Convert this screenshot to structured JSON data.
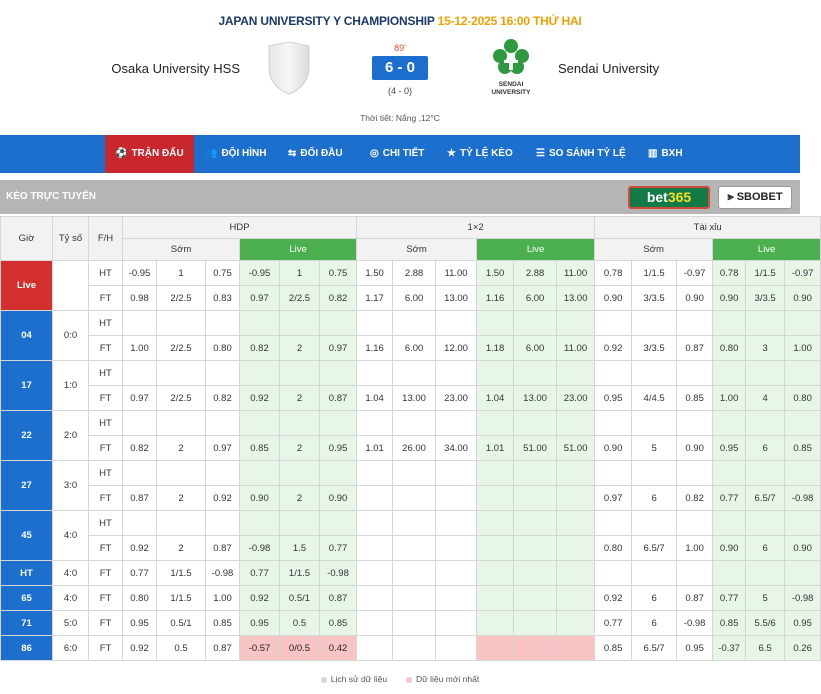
{
  "match": {
    "league": "JAPAN UNIVERSITY Y CHAMPIONSHIP",
    "datetime": "15-12-2025 16:00 THỨ HAI",
    "home": "Osaka University HSS",
    "away": "Sendai University",
    "away_logo_text": "SENDAI UNIVERSITY",
    "minute": "89'",
    "score": "6 - 0",
    "halftime": "(4 - 0)",
    "weather": "Thời tiết: Nắng ,12°C"
  },
  "nav": [
    {
      "label": "TRẬN ĐẤU",
      "icon": "⚽"
    },
    {
      "label": "ĐỘI HÌNH",
      "icon": "👥"
    },
    {
      "label": "ĐỐI ĐẦU",
      "icon": "⇆"
    },
    {
      "label": "CHI TIẾT",
      "icon": "◎"
    },
    {
      "label": "TỶ LỆ KÈO",
      "icon": "★"
    },
    {
      "label": "SO SÁNH TỶ LỆ",
      "icon": "☰"
    },
    {
      "label": "BXH",
      "icon": "▥"
    }
  ],
  "odds": {
    "title": "Kèo trực tuyến",
    "bookmaker1_a": "bet",
    "bookmaker1_b": "365",
    "bookmaker2": "SBOBET",
    "headers": {
      "gio": "Giờ",
      "tyso": "Tỷ số",
      "fh": "F/H",
      "hdp": "HDP",
      "x12": "1×2",
      "taixiu": "Tài xỉu",
      "som": "Sớm",
      "live": "Live"
    },
    "rows": [
      {
        "time": "Live",
        "score": "",
        "span": 2,
        "lines": [
          {
            "fh": "HT",
            "v": [
              "-0.95",
              "1",
              "0.75",
              "-0.95",
              "1",
              "0.75",
              "1.50",
              "2.88",
              "11.00",
              "1.50",
              "2.88",
              "11.00",
              "0.78",
              "1/1.5",
              "-0.97",
              "0.78",
              "1/1.5",
              "-0.97"
            ]
          },
          {
            "fh": "FT",
            "v": [
              "0.98",
              "2/2.5",
              "0.83",
              "0.97",
              "2/2.5",
              "0.82",
              "1.17",
              "6.00",
              "13.00",
              "1.16",
              "6.00",
              "13.00",
              "0.90",
              "3/3.5",
              "0.90",
              "0.90",
              "3/3.5",
              "0.90"
            ]
          }
        ]
      },
      {
        "time": "04",
        "score": "0:0",
        "span": 2,
        "lines": [
          {
            "fh": "HT",
            "v": [
              "",
              "",
              "",
              "",
              "",
              "",
              "",
              "",
              "",
              "",
              "",
              "",
              "",
              "",
              "",
              "",
              "",
              ""
            ]
          },
          {
            "fh": "FT",
            "v": [
              "1.00",
              "2/2.5",
              "0.80",
              "0.82",
              "2",
              "0.97",
              "1.16",
              "6.00",
              "12.00",
              "1.18",
              "6.00",
              "11.00",
              "0.92",
              "3/3.5",
              "0.87",
              "0.80",
              "3",
              "1.00"
            ]
          }
        ]
      },
      {
        "time": "17",
        "score": "1:0",
        "span": 2,
        "lines": [
          {
            "fh": "HT",
            "v": [
              "",
              "",
              "",
              "",
              "",
              "",
              "",
              "",
              "",
              "",
              "",
              "",
              "",
              "",
              "",
              "",
              "",
              ""
            ]
          },
          {
            "fh": "FT",
            "v": [
              "0.97",
              "2/2.5",
              "0.82",
              "0.92",
              "2",
              "0.87",
              "1.04",
              "13.00",
              "23.00",
              "1.04",
              "13.00",
              "23.00",
              "0.95",
              "4/4.5",
              "0.85",
              "1.00",
              "4",
              "0.80"
            ]
          }
        ]
      },
      {
        "time": "22",
        "score": "2:0",
        "span": 2,
        "lines": [
          {
            "fh": "HT",
            "v": [
              "",
              "",
              "",
              "",
              "",
              "",
              "",
              "",
              "",
              "",
              "",
              "",
              "",
              "",
              "",
              "",
              "",
              ""
            ]
          },
          {
            "fh": "FT",
            "v": [
              "0.82",
              "2",
              "0.97",
              "0.85",
              "2",
              "0.95",
              "1.01",
              "26.00",
              "34.00",
              "1.01",
              "51.00",
              "51.00",
              "0.90",
              "5",
              "0.90",
              "0.95",
              "6",
              "0.85"
            ]
          }
        ]
      },
      {
        "time": "27",
        "score": "3:0",
        "span": 2,
        "lines": [
          {
            "fh": "HT",
            "v": [
              "",
              "",
              "",
              "",
              "",
              "",
              "",
              "",
              "",
              "",
              "",
              "",
              "",
              "",
              "",
              "",
              "",
              ""
            ]
          },
          {
            "fh": "FT",
            "v": [
              "0.87",
              "2",
              "0.92",
              "0.90",
              "2",
              "0.90",
              "",
              "",
              "",
              "",
              "",
              "",
              "0.97",
              "6",
              "0.82",
              "0.77",
              "6.5/7",
              "-0.98"
            ]
          }
        ]
      },
      {
        "time": "45",
        "score": "4:0",
        "span": 2,
        "lines": [
          {
            "fh": "HT",
            "v": [
              "",
              "",
              "",
              "",
              "",
              "",
              "",
              "",
              "",
              "",
              "",
              "",
              "",
              "",
              "",
              "",
              "",
              ""
            ]
          },
          {
            "fh": "FT",
            "v": [
              "0.92",
              "2",
              "0.87",
              "-0.98",
              "1.5",
              "0.77",
              "",
              "",
              "",
              "",
              "",
              "",
              "0.80",
              "6.5/7",
              "1.00",
              "0.90",
              "6",
              "0.90"
            ]
          }
        ]
      },
      {
        "time": "HT",
        "score": "4:0",
        "span": 1,
        "lines": [
          {
            "fh": "FT",
            "v": [
              "0.77",
              "1/1.5",
              "-0.98",
              "0.77",
              "1/1.5",
              "-0.98",
              "",
              "",
              "",
              "",
              "",
              "",
              "",
              "",
              "",
              "",
              "",
              ""
            ]
          }
        ]
      },
      {
        "time": "65",
        "score": "4:0",
        "span": 1,
        "lines": [
          {
            "fh": "FT",
            "v": [
              "0.80",
              "1/1.5",
              "1.00",
              "0.92",
              "0.5/1",
              "0.87",
              "",
              "",
              "",
              "",
              "",
              "",
              "0.92",
              "6",
              "0.87",
              "0.77",
              "5",
              "-0.98"
            ]
          }
        ]
      },
      {
        "time": "71",
        "score": "5:0",
        "span": 1,
        "lines": [
          {
            "fh": "FT",
            "v": [
              "0.95",
              "0.5/1",
              "0.85",
              "0.95",
              "0.5",
              "0.85",
              "",
              "",
              "",
              "",
              "",
              "",
              "0.77",
              "6",
              "-0.98",
              "0.85",
              "5.5/6",
              "0.95"
            ]
          }
        ]
      },
      {
        "time": "86",
        "score": "6:0",
        "span": 1,
        "highlight": true,
        "lines": [
          {
            "fh": "FT",
            "v": [
              "0.92",
              "0.5",
              "0.87",
              "-0.57",
              "0/0.5",
              "0.42",
              "",
              "",
              "",
              "",
              "",
              "",
              "0.85",
              "6.5/7",
              "0.95",
              "-0.37",
              "6.5",
              "0.26"
            ]
          }
        ]
      }
    ],
    "legend": {
      "history": "Lịch sử dữ liệu",
      "latest": "Dữ liệu mới nhất"
    },
    "colors": {
      "history": "#cfd8dc",
      "latest": "#f8c4c4"
    }
  }
}
